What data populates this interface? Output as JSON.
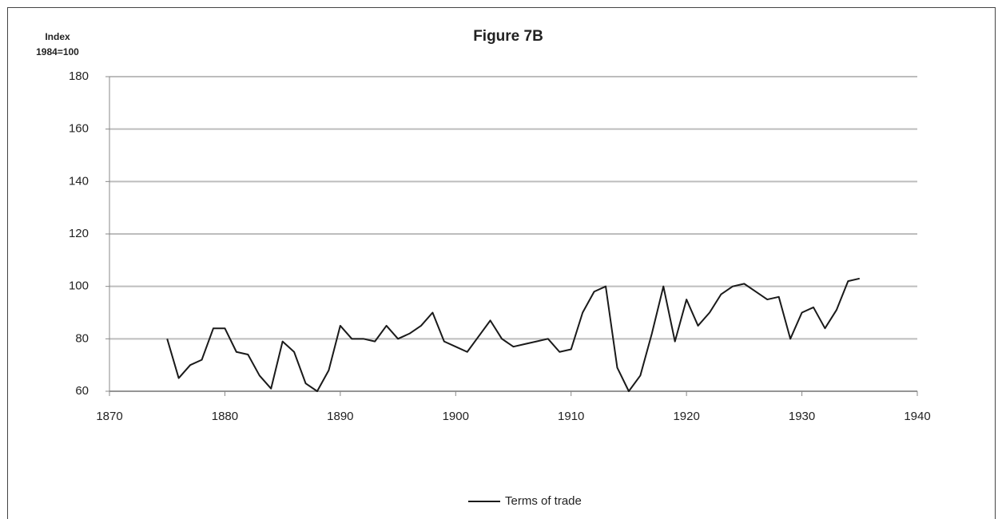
{
  "chart_data": {
    "type": "line",
    "title": "Figure 7B",
    "ylabel": [
      "Index",
      "1984=100"
    ],
    "x": [
      1875,
      1876,
      1877,
      1878,
      1879,
      1880,
      1881,
      1882,
      1883,
      1884,
      1885,
      1886,
      1887,
      1888,
      1889,
      1890,
      1891,
      1892,
      1893,
      1894,
      1895,
      1896,
      1897,
      1898,
      1899,
      1900,
      1901,
      1902,
      1903,
      1904,
      1905,
      1906,
      1907,
      1908,
      1909,
      1910,
      1911,
      1912,
      1913,
      1914,
      1915,
      1916,
      1917,
      1918,
      1919,
      1920,
      1921,
      1922,
      1923,
      1924,
      1925,
      1926,
      1927,
      1928,
      1929,
      1930,
      1931,
      1932,
      1933,
      1934,
      1935
    ],
    "series": [
      {
        "name": "Terms of trade",
        "color": "#1a1a1a",
        "values": [
          80,
          65,
          70,
          72,
          84,
          84,
          75,
          74,
          66,
          61,
          79,
          75,
          63,
          60,
          68,
          85,
          80,
          80,
          79,
          85,
          80,
          82,
          85,
          90,
          79,
          77,
          75,
          81,
          87,
          80,
          77,
          78,
          79,
          80,
          75,
          76,
          90,
          98,
          100,
          69,
          60,
          66,
          82,
          100,
          79,
          95,
          85,
          90,
          97,
          100,
          101,
          98,
          95,
          96,
          80,
          90,
          92,
          84,
          91,
          102,
          103
        ]
      }
    ],
    "xlim": [
      1870,
      1940
    ],
    "xticks": [
      1870,
      1880,
      1890,
      1900,
      1910,
      1920,
      1930,
      1940
    ],
    "ylim": [
      60,
      180
    ],
    "yticks": [
      60,
      80,
      100,
      120,
      140,
      160,
      180
    ],
    "grid": true,
    "legend": "bottom"
  }
}
